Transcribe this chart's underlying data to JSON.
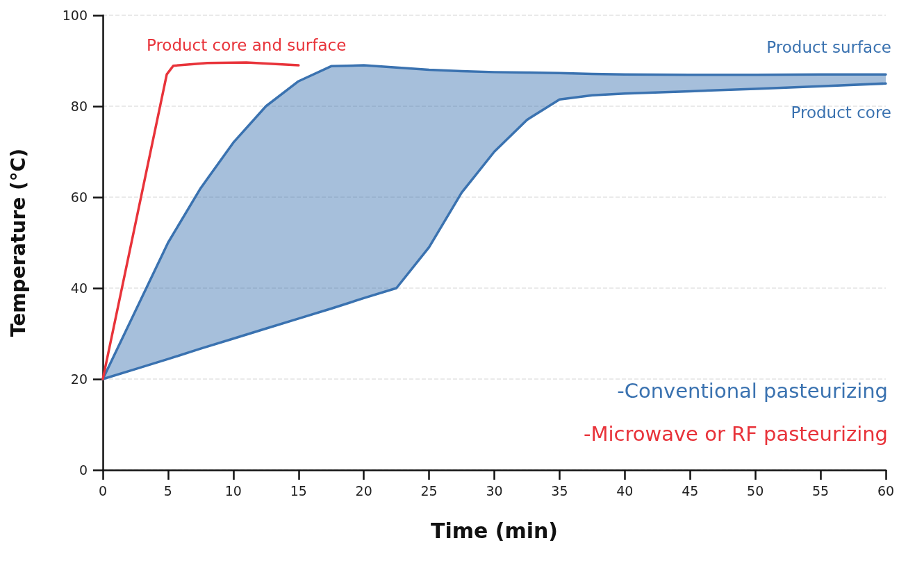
{
  "chart_data": {
    "type": "line",
    "xlabel": "Time (min)",
    "ylabel": "Temperature (°C)",
    "xlim": [
      0,
      60
    ],
    "xticks": [
      0,
      5,
      10,
      15,
      20,
      25,
      30,
      35,
      40,
      45,
      50,
      55,
      60
    ],
    "ylim": [
      0,
      100
    ],
    "yticks": [
      0,
      20,
      40,
      60,
      80,
      100
    ],
    "grid": "y",
    "legend": false,
    "marker": "none",
    "line_style": "solid",
    "series": [
      {
        "name": "Product surface",
        "color": "#3a72b0",
        "x": [
          0,
          2.5,
          5,
          7.5,
          10,
          12.5,
          15,
          17.5,
          20,
          22.5,
          25,
          27.5,
          30,
          32.5,
          35,
          37.5,
          40,
          45,
          50,
          55,
          60
        ],
        "values": [
          20,
          35,
          50,
          62,
          72,
          80,
          85.5,
          88.8,
          89,
          88.5,
          88,
          87.7,
          87.5,
          87.4,
          87.3,
          87.1,
          87,
          86.9,
          86.9,
          87,
          87
        ],
        "upper": [
          20,
          35,
          50,
          62,
          72,
          80,
          85.5,
          88.8,
          89,
          88.5,
          88,
          87.7,
          87.5,
          87.4,
          87.3,
          87.1,
          87,
          86.9,
          86.9,
          87,
          87
        ],
        "lower": [
          20,
          22.2,
          24.4,
          26.7,
          28.9,
          31.1,
          33.3,
          35.5,
          37.8,
          40,
          49,
          61,
          70,
          77,
          81.5,
          82.4,
          82.8,
          83.3,
          83.8,
          84.4,
          85
        ]
      },
      {
        "name": "Product core",
        "color": "#3a72b0",
        "x": [
          0,
          2.5,
          5,
          7.5,
          10,
          12.5,
          15,
          17.5,
          20,
          22.5,
          25,
          27.5,
          30,
          32.5,
          35,
          37.5,
          40,
          45,
          50,
          55,
          60
        ],
        "values": [
          20,
          22.2,
          24.4,
          26.7,
          28.9,
          31.1,
          33.3,
          35.5,
          37.8,
          40,
          49,
          61,
          70,
          77,
          81.5,
          82.4,
          82.8,
          83.3,
          83.8,
          84.4,
          85
        ]
      },
      {
        "name": "Product core and surface",
        "color": "#e8333a",
        "x": [
          0,
          4.9,
          5.4,
          8,
          11,
          15
        ],
        "values": [
          20,
          87,
          88.9,
          89.5,
          89.6,
          89
        ]
      }
    ],
    "annotations": [
      "-Conventional pasteurizing",
      "-Microwave or RF pasteurizing"
    ]
  }
}
